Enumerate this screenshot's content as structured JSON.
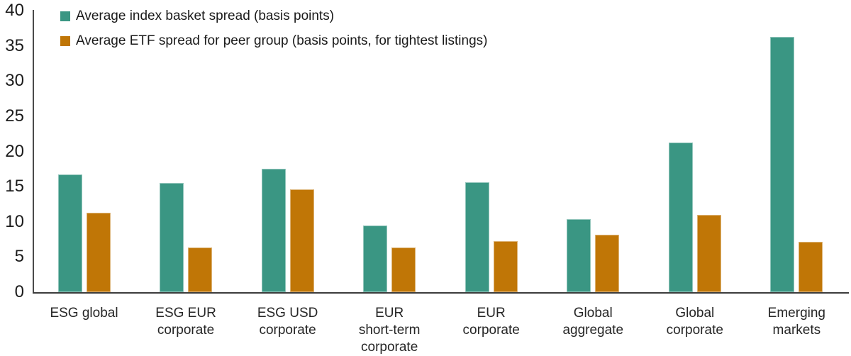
{
  "chart_data": {
    "type": "bar",
    "title": "",
    "xlabel": "",
    "ylabel": "",
    "ylim": [
      0,
      40
    ],
    "ytick_step": 5,
    "grid": false,
    "legend_position": "top-left",
    "background_color": "#ffffff",
    "axis_color": "#3c3c3c",
    "text_color": "#1c1c1c",
    "categories": [
      "ESG global",
      "ESG EUR\ncorporate",
      "ESG USD\ncorporate",
      "EUR\nshort-term\ncorporate",
      "EUR\ncorporate",
      "Global\naggregate",
      "Global\ncorporate",
      "Emerging\nmarkets"
    ],
    "series": [
      {
        "name": "Average index basket spread (basis points)",
        "color": "#3a9683",
        "values": [
          16.7,
          15.5,
          17.5,
          9.5,
          15.6,
          10.4,
          21.3,
          36.3
        ]
      },
      {
        "name": "Average ETF spread for peer group (basis points, for tightest listings)",
        "color": "#c07606",
        "values": [
          11.3,
          6.3,
          14.6,
          6.3,
          7.3,
          8.2,
          11.0,
          7.2
        ]
      }
    ],
    "value_unit": "basis points"
  }
}
